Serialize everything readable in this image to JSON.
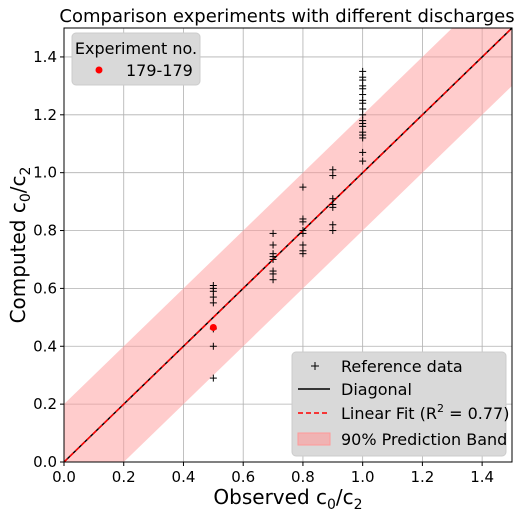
{
  "chart_data": {
    "type": "scatter",
    "title": "Comparison experiments with different discharges",
    "xlabel_main": "Observed c",
    "xlabel_sub0": "0",
    "xlabel_slash": "/c",
    "xlabel_sub2": "2",
    "ylabel_main": "Computed c",
    "ylabel_sub0": "0",
    "ylabel_slash": "/c",
    "ylabel_sub2": "2",
    "xlim": [
      0.0,
      1.5
    ],
    "ylim": [
      0.0,
      1.5
    ],
    "xticks": [
      "0.0",
      "0.2",
      "0.4",
      "0.6",
      "0.8",
      "1.0",
      "1.2",
      "1.4"
    ],
    "yticks": [
      "0.0",
      "0.2",
      "0.4",
      "0.6",
      "0.8",
      "1.0",
      "1.2",
      "1.4"
    ],
    "grid": true,
    "series": [
      {
        "name": "Reference data",
        "marker": "plus",
        "color": "#000000",
        "points": [
          [
            0.5,
            0.29
          ],
          [
            0.5,
            0.4
          ],
          [
            0.5,
            0.46
          ],
          [
            0.5,
            0.55
          ],
          [
            0.5,
            0.57
          ],
          [
            0.5,
            0.59
          ],
          [
            0.5,
            0.6
          ],
          [
            0.5,
            0.61
          ],
          [
            0.7,
            0.63
          ],
          [
            0.7,
            0.65
          ],
          [
            0.7,
            0.66
          ],
          [
            0.7,
            0.7
          ],
          [
            0.7,
            0.71
          ],
          [
            0.7,
            0.72
          ],
          [
            0.7,
            0.75
          ],
          [
            0.7,
            0.79
          ],
          [
            0.8,
            0.72
          ],
          [
            0.8,
            0.73
          ],
          [
            0.8,
            0.75
          ],
          [
            0.8,
            0.79
          ],
          [
            0.8,
            0.8
          ],
          [
            0.8,
            0.83
          ],
          [
            0.8,
            0.84
          ],
          [
            0.8,
            0.95
          ],
          [
            0.9,
            0.8
          ],
          [
            0.9,
            0.82
          ],
          [
            0.9,
            0.88
          ],
          [
            0.9,
            0.89
          ],
          [
            0.9,
            0.91
          ],
          [
            0.9,
            0.99
          ],
          [
            0.9,
            1.01
          ],
          [
            1.0,
            1.04
          ],
          [
            1.0,
            1.07
          ],
          [
            1.0,
            1.12
          ],
          [
            1.0,
            1.13
          ],
          [
            1.0,
            1.14
          ],
          [
            1.0,
            1.16
          ],
          [
            1.0,
            1.17
          ],
          [
            1.0,
            1.18
          ],
          [
            1.0,
            1.2
          ],
          [
            1.0,
            1.22
          ],
          [
            1.0,
            1.24
          ],
          [
            1.0,
            1.25
          ],
          [
            1.0,
            1.27
          ],
          [
            1.0,
            1.29
          ],
          [
            1.0,
            1.3
          ],
          [
            1.0,
            1.32
          ],
          [
            1.0,
            1.33
          ],
          [
            1.0,
            1.35
          ]
        ]
      },
      {
        "name": "179-179",
        "marker": "circle",
        "color": "#ff0000",
        "points": [
          [
            0.5,
            0.465
          ]
        ]
      }
    ],
    "diagonal": {
      "name": "Diagonal",
      "color": "#000000"
    },
    "linear_fit": {
      "name_prefix": "Linear Fit (R",
      "name_sup": "2",
      "name_suffix": " = 0.77)",
      "slope": 1.0,
      "intercept": 0.0,
      "color": "#ff0000"
    },
    "prediction_band": {
      "name": "90% Prediction Band",
      "half_width": 0.2,
      "color": "#ff9999"
    },
    "legend_experiment": {
      "title": "Experiment no.",
      "position": "top-left",
      "entries": [
        "179-179"
      ]
    },
    "legend_main": {
      "position": "bottom-right"
    }
  }
}
